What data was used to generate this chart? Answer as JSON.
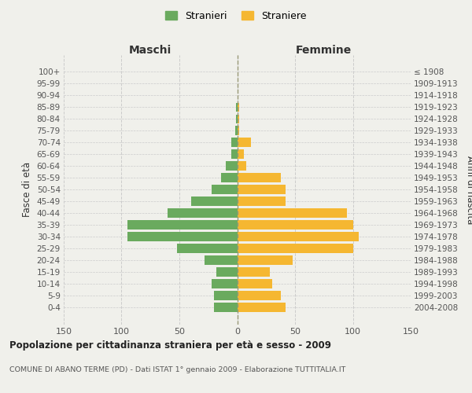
{
  "age_groups": [
    "0-4",
    "5-9",
    "10-14",
    "15-19",
    "20-24",
    "25-29",
    "30-34",
    "35-39",
    "40-44",
    "45-49",
    "50-54",
    "55-59",
    "60-64",
    "65-69",
    "70-74",
    "75-79",
    "80-84",
    "85-89",
    "90-94",
    "95-99",
    "100+"
  ],
  "birth_years": [
    "2004-2008",
    "1999-2003",
    "1994-1998",
    "1989-1993",
    "1984-1988",
    "1979-1983",
    "1974-1978",
    "1969-1973",
    "1964-1968",
    "1959-1963",
    "1954-1958",
    "1949-1953",
    "1944-1948",
    "1939-1943",
    "1934-1938",
    "1929-1933",
    "1924-1928",
    "1919-1923",
    "1914-1918",
    "1909-1913",
    "≤ 1908"
  ],
  "maschi": [
    20,
    20,
    22,
    18,
    28,
    52,
    95,
    95,
    60,
    40,
    22,
    14,
    10,
    5,
    5,
    2,
    1,
    1,
    0,
    0,
    0
  ],
  "femmine": [
    42,
    38,
    30,
    28,
    48,
    100,
    105,
    100,
    95,
    42,
    42,
    38,
    8,
    6,
    12,
    2,
    2,
    2,
    0,
    0,
    0
  ],
  "maschi_color": "#6aaa5e",
  "femmine_color": "#f5b731",
  "center_line_color": "#999977",
  "grid_color": "#cccccc",
  "bg_color": "#f0f0eb",
  "title": "Popolazione per cittadinanza straniera per età e sesso - 2009",
  "subtitle": "COMUNE DI ABANO TERME (PD) - Dati ISTAT 1° gennaio 2009 - Elaborazione TUTTITALIA.IT",
  "left_header": "Maschi",
  "right_header": "Femmine",
  "ylabel_left": "Fasce di età",
  "ylabel_right": "Anni di nascita",
  "legend_maschi": "Stranieri",
  "legend_femmine": "Straniere",
  "xlim": 150
}
